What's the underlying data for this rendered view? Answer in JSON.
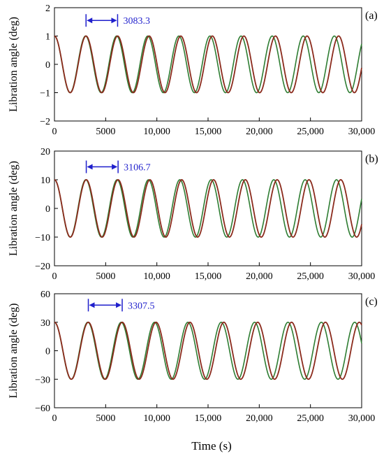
{
  "figure": {
    "shared_xlabel": "Time (s)",
    "line_colors": {
      "main": "#8B2A1C",
      "secondary": "#2E7D32"
    },
    "annotation_color": "#1F1FCC"
  },
  "chart_data": [
    {
      "type": "line",
      "panel_label": "(a)",
      "ylabel": "Libration angle  (deg)",
      "xlim": [
        0,
        30000
      ],
      "ylim": [
        -2,
        2
      ],
      "xticks": [
        0,
        5000,
        10000,
        15000,
        20000,
        25000,
        30000
      ],
      "xtick_labels": [
        "0",
        "5000",
        "10,000",
        "15,000",
        "20,000",
        "25,000",
        "30,000"
      ],
      "yticks": [
        -2,
        -1,
        0,
        1,
        2
      ],
      "ytick_labels": [
        "−2",
        "−1",
        "0",
        "1",
        "2"
      ],
      "series": [
        {
          "amplitude": 1,
          "period": 3083.3,
          "start_phase": "max_at_0"
        }
      ],
      "annotation": {
        "text": "3083.3",
        "x_start": 3083.3,
        "x_end": 6166.6,
        "y": 1.55
      }
    },
    {
      "type": "line",
      "panel_label": "(b)",
      "ylabel": "Libration angle  (deg)",
      "xlim": [
        0,
        30000
      ],
      "ylim": [
        -20,
        20
      ],
      "xticks": [
        0,
        5000,
        10000,
        15000,
        20000,
        25000,
        30000
      ],
      "xtick_labels": [
        "0",
        "5000",
        "10,000",
        "15,000",
        "20,000",
        "25,000",
        "30,000"
      ],
      "yticks": [
        -20,
        -10,
        0,
        10,
        20
      ],
      "ytick_labels": [
        "−20",
        "−10",
        "0",
        "10",
        "20"
      ],
      "series": [
        {
          "amplitude": 10,
          "period": 3106.7,
          "start_phase": "max_at_0"
        }
      ],
      "annotation": {
        "text": "3106.7",
        "x_start": 3106.7,
        "x_end": 6213.4,
        "y": 14.5
      }
    },
    {
      "type": "line",
      "panel_label": "(c)",
      "ylabel": "Libration angle  (deg)",
      "xlim": [
        0,
        30000
      ],
      "ylim": [
        -60,
        60
      ],
      "xticks": [
        0,
        5000,
        10000,
        15000,
        20000,
        25000,
        30000
      ],
      "xtick_labels": [
        "0",
        "5000",
        "10,000",
        "15,000",
        "20,000",
        "25,000",
        "30,000"
      ],
      "yticks": [
        -60,
        -30,
        0,
        30,
        60
      ],
      "ytick_labels": [
        "−60",
        "−30",
        "0",
        "30",
        "60"
      ],
      "series": [
        {
          "amplitude": 30,
          "period": 3307.5,
          "start_phase": "max_at_0"
        }
      ],
      "annotation": {
        "text": "3307.5",
        "x_start": 3307.5,
        "x_end": 6615.0,
        "y": 48
      }
    }
  ]
}
